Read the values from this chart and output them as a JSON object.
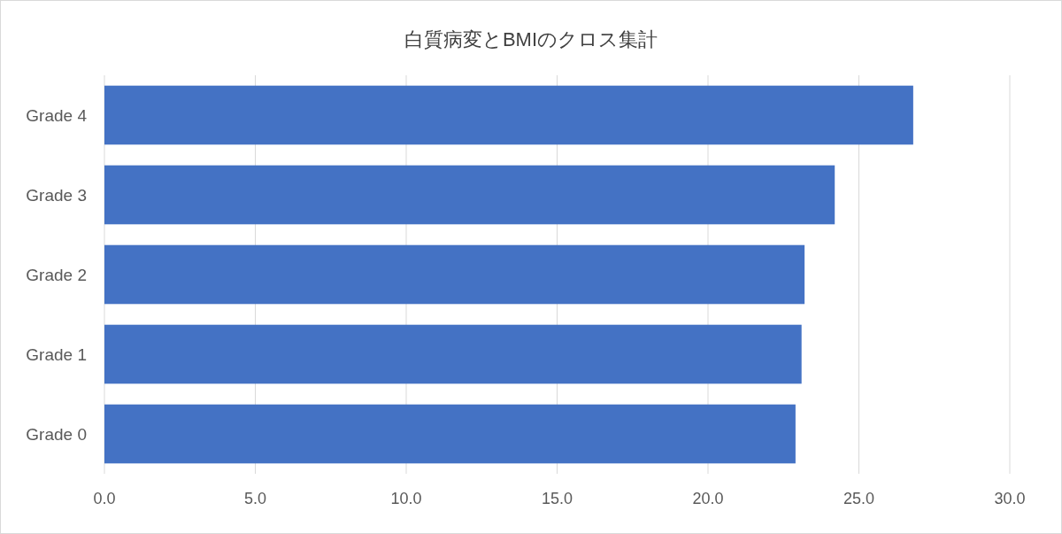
{
  "chart_data": {
    "type": "bar",
    "orientation": "horizontal",
    "title": "白質病変とBMIのクロス集計",
    "categories": [
      "Grade 4",
      "Grade 3",
      "Grade 2",
      "Grade 1",
      "Grade 0"
    ],
    "values": [
      26.8,
      24.2,
      23.2,
      23.1,
      22.9
    ],
    "color": "#4472c4",
    "xlim": [
      0,
      30
    ],
    "xticks": [
      {
        "value": 0,
        "label": "0.0"
      },
      {
        "value": 5,
        "label": "5.0"
      },
      {
        "value": 10,
        "label": "10.0"
      },
      {
        "value": 15,
        "label": "15.0"
      },
      {
        "value": 20,
        "label": "20.0"
      },
      {
        "value": 25,
        "label": "25.0"
      },
      {
        "value": 30,
        "label": "30.0"
      }
    ],
    "grid": "x"
  }
}
